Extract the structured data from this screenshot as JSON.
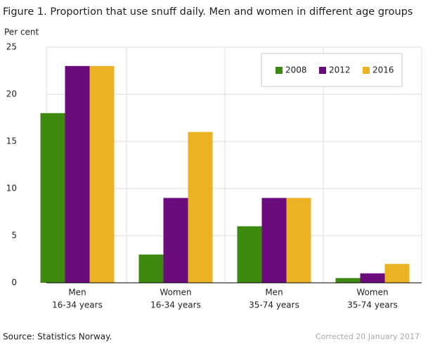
{
  "chart_data": {
    "type": "bar",
    "title": "Figure 1. Proportion that use snuff daily. Men and women in different age groups",
    "y_label": "Per cent",
    "categories": [
      [
        "Men",
        "16-34 years"
      ],
      [
        "Women",
        "16-34 years"
      ],
      [
        "Men",
        "35-74 years"
      ],
      [
        "Women",
        "35-74 years"
      ]
    ],
    "series": [
      {
        "name": "2008",
        "color": "#3e8a10",
        "values": [
          18,
          3,
          6,
          0.5
        ]
      },
      {
        "name": "2012",
        "color": "#6c0b7d",
        "values": [
          23,
          9,
          9,
          1
        ]
      },
      {
        "name": "2016",
        "color": "#ebb223",
        "values": [
          23,
          16,
          9,
          2
        ]
      }
    ],
    "ylim": [
      0,
      25
    ],
    "yticks": [
      0,
      5,
      10,
      15,
      20,
      25
    ],
    "grid": true,
    "legend_position": "upper right",
    "source": "Source: Statistics Norway.",
    "note": "Corrected 20 January 2017"
  }
}
